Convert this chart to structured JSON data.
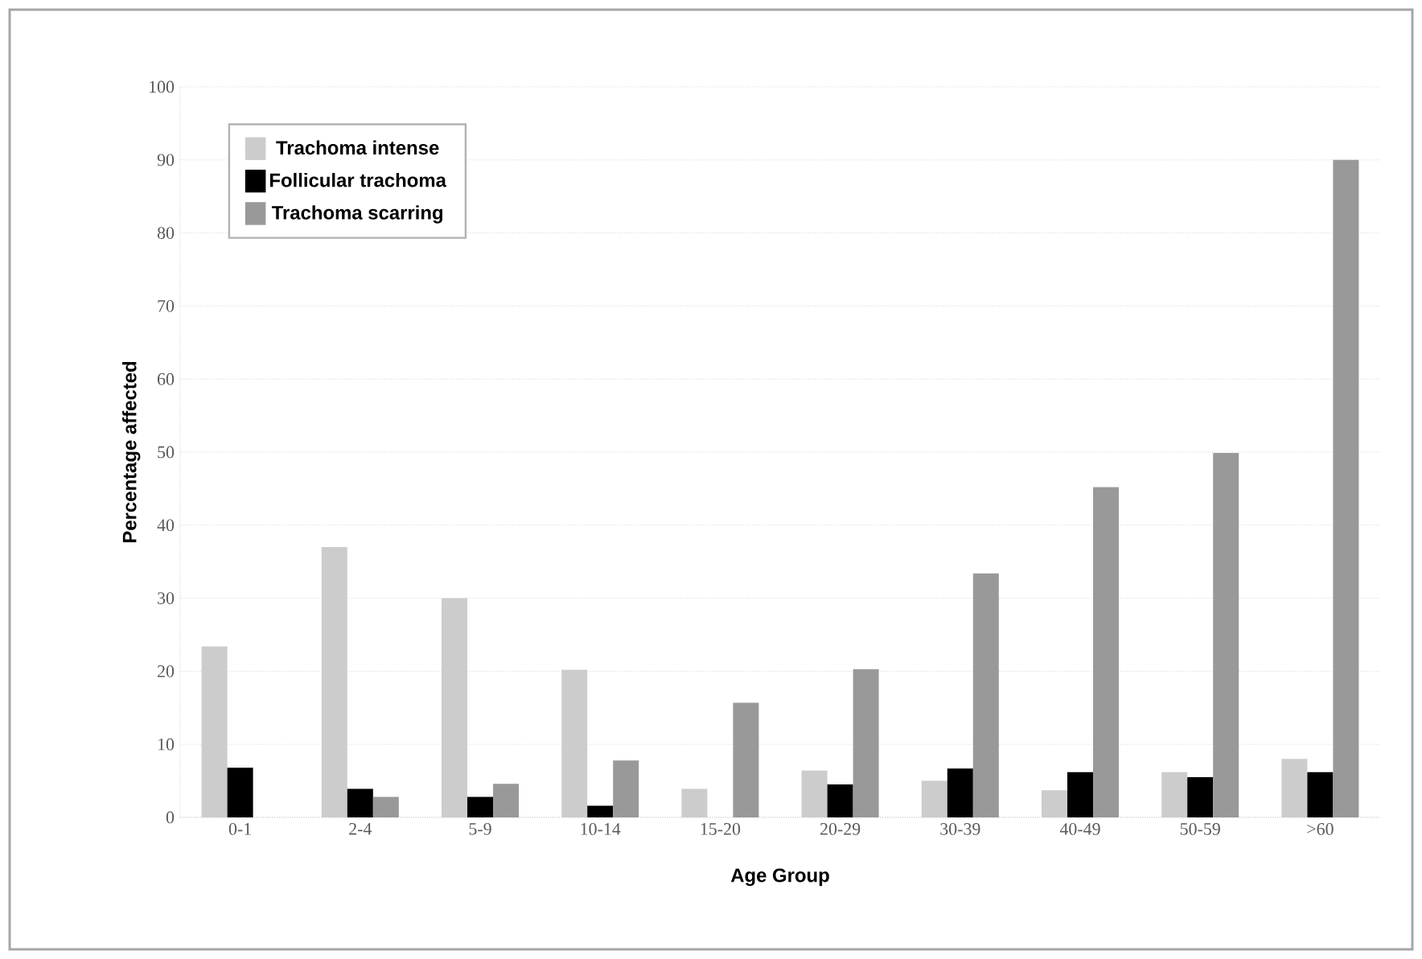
{
  "chart_data": {
    "type": "bar",
    "xlabel": "Age Group",
    "ylabel": "Percentage affected",
    "categories": [
      "0-1",
      "2-4",
      "5-9",
      "10-14",
      "15-20",
      "20-29",
      "30-39",
      "40-49",
      "50-59",
      ">60"
    ],
    "series": [
      {
        "name": "Trachoma intense",
        "color": "#cccccc",
        "values": [
          23.4,
          37,
          30,
          20.2,
          3.9,
          6.4,
          5,
          3.7,
          6.2,
          8
        ]
      },
      {
        "name": "Follicular trachoma",
        "color": "#000000",
        "values": [
          6.8,
          3.9,
          2.8,
          1.6,
          null,
          4.5,
          6.7,
          6.2,
          5.5,
          6.2
        ]
      },
      {
        "name": "Trachoma scarring",
        "color": "#999999",
        "values": [
          null,
          2.8,
          4.6,
          7.8,
          15.7,
          20.3,
          33.4,
          45.2,
          49.9,
          90
        ]
      }
    ],
    "ylim": [
      0,
      100
    ],
    "yticks": [
      0,
      10,
      20,
      30,
      40,
      50,
      60,
      70,
      80,
      90,
      100
    ],
    "grid": "y",
    "legend": "top left"
  }
}
